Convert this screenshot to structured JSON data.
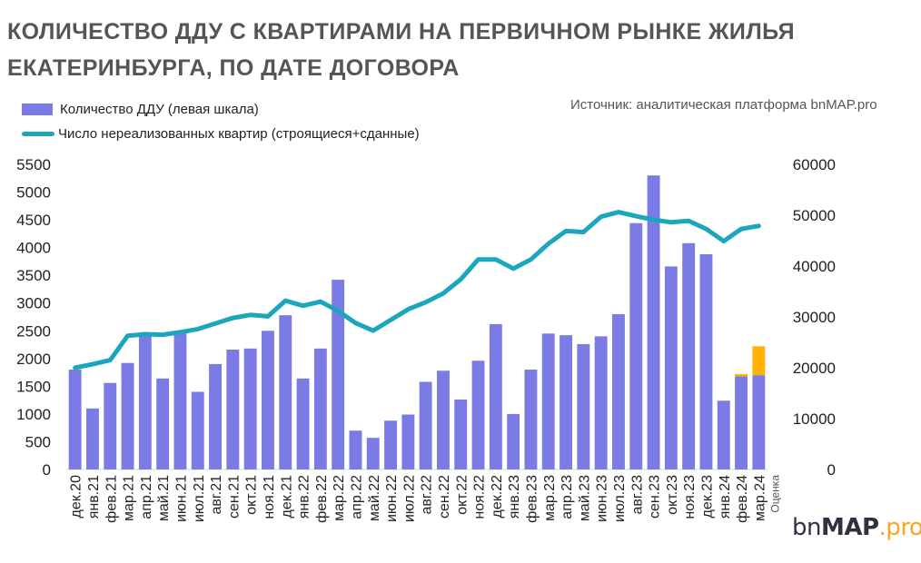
{
  "title_line1": "КОЛИЧЕСТВО ДДУ С КВАРТИРАМИ НА ПЕРВИЧНОМ РЫНКЕ ЖИЛЬЯ",
  "title_line2": "ЕКАТЕРИНБУРГА, ПО ДАТЕ ДОГОВОРА",
  "source": "Источник: аналитическая платформа bnMAP.pro",
  "logo": {
    "prefix": "bn",
    "bold": "MAP",
    "suffix": ".pro"
  },
  "colors": {
    "bars": "#7b7be6",
    "estimate": "#ffb300",
    "line": "#1aa6bd"
  },
  "chart_data": {
    "type": "bar",
    "categories": [
      "дек.20",
      "янв.21",
      "фев.21",
      "мар.21",
      "апр.21",
      "май.21",
      "июн.21",
      "июл.21",
      "авг.21",
      "сен.21",
      "окт.21",
      "ноя.21",
      "дек.21",
      "янв.22",
      "фев.22",
      "мар.22",
      "апр.22",
      "май.22",
      "июн.22",
      "июл.22",
      "авг.22",
      "сен.22",
      "окт.22",
      "ноя.22",
      "дек.22",
      "янв.23",
      "фев.23",
      "мар.23",
      "апр.23",
      "май.23",
      "июн.23",
      "июл.23",
      "авг.23",
      "сен.23",
      "окт.23",
      "ноя.23",
      "дек.23",
      "янв.24",
      "фев.24",
      "мар.24"
    ],
    "series": [
      {
        "name": "Количество ДДУ (левая шкала)",
        "axis": "left",
        "kind": "bar",
        "values": [
          1800,
          1100,
          1560,
          1920,
          2450,
          1640,
          2480,
          1400,
          1900,
          2160,
          2180,
          2500,
          2780,
          1640,
          2180,
          3420,
          700,
          570,
          880,
          990,
          1580,
          1780,
          1260,
          1960,
          2620,
          1000,
          1800,
          2450,
          2420,
          2260,
          2400,
          2800,
          4440,
          5300,
          3660,
          4080,
          3880,
          1240,
          1680,
          1700
        ]
      },
      {
        "name": "Число нереализованных квартир (строящиеся+сданные)",
        "axis": "right",
        "kind": "line",
        "values": [
          20000,
          20700,
          21500,
          26300,
          26600,
          26500,
          27000,
          27600,
          28700,
          29800,
          30400,
          30100,
          33200,
          32200,
          33000,
          31200,
          28800,
          27300,
          29400,
          31500,
          32900,
          34600,
          37400,
          41300,
          41300,
          39500,
          41300,
          44400,
          46900,
          46700,
          49700,
          50600,
          49800,
          49100,
          48600,
          48900,
          47300,
          44900,
          47300,
          47900
        ]
      },
      {
        "name": "Оценка",
        "axis": "left",
        "kind": "bar-stack",
        "values": [
          0,
          0,
          0,
          0,
          0,
          0,
          0,
          0,
          0,
          0,
          0,
          0,
          0,
          0,
          0,
          0,
          0,
          0,
          0,
          0,
          0,
          0,
          0,
          0,
          0,
          0,
          0,
          0,
          0,
          0,
          0,
          0,
          0,
          0,
          0,
          0,
          0,
          0,
          40,
          520
        ]
      }
    ],
    "estimate_label": "Оценка",
    "y_left": {
      "min": 0,
      "max": 5500,
      "step": 500
    },
    "y_right": {
      "min": 0,
      "max": 60000,
      "step": 10000
    },
    "title": "КОЛИЧЕСТВО ДДУ С КВАРТИРАМИ НА ПЕРВИЧНОМ РЫНКЕ ЖИЛЬЯ ЕКАТЕРИНБУРГА, ПО ДАТЕ ДОГОВОРА",
    "legend_position": "top-left"
  }
}
